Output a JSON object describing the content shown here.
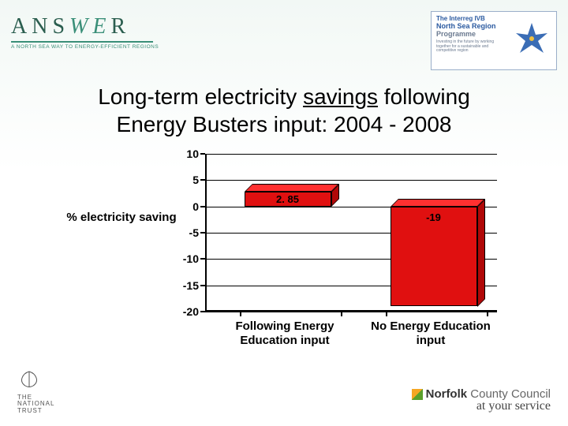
{
  "header": {
    "answer_logo": {
      "main_pre": "ANS",
      "main_we": "WE",
      "main_post": "R",
      "tagline": "A NORTH SEA WAY TO ENERGY-EFFICIENT REGIONS"
    },
    "interreg": {
      "line1": "The Interreg IVB",
      "line2": "North Sea Region",
      "line3": "Programme",
      "sub": "Investing in the future by working together for a sustainable and competitive region"
    }
  },
  "title": {
    "line1_pre": "Long-term electricity ",
    "line1_u": "savings",
    "line1_post": " following",
    "line2": "Energy Busters input: 2004 - 2008"
  },
  "chart": {
    "type": "bar",
    "ylabel": "% electricity saving",
    "ylim": [
      -20,
      10
    ],
    "ytick_step": 5,
    "yticks": [
      10,
      5,
      0,
      -5,
      -10,
      -15,
      -20
    ],
    "categories": [
      "Following Energy Education input",
      "No Energy Education input"
    ],
    "values": [
      2.85,
      -19
    ],
    "value_labels": [
      "2. 85",
      "-19"
    ],
    "bar_color": "#e01010",
    "bar_top_color": "#ff3030",
    "bar_side_color": "#b00808",
    "grid_color": "#000000",
    "label_fontsize": 15,
    "tick_fontsize": 14,
    "value_fontsize": 13
  },
  "footer": {
    "national_trust": {
      "l1": "THE",
      "l2": "NATIONAL",
      "l3": "TRUST"
    },
    "norfolk": {
      "name_bold": "Norfolk",
      "name_rest": " County Council",
      "tag": "at your service"
    }
  }
}
